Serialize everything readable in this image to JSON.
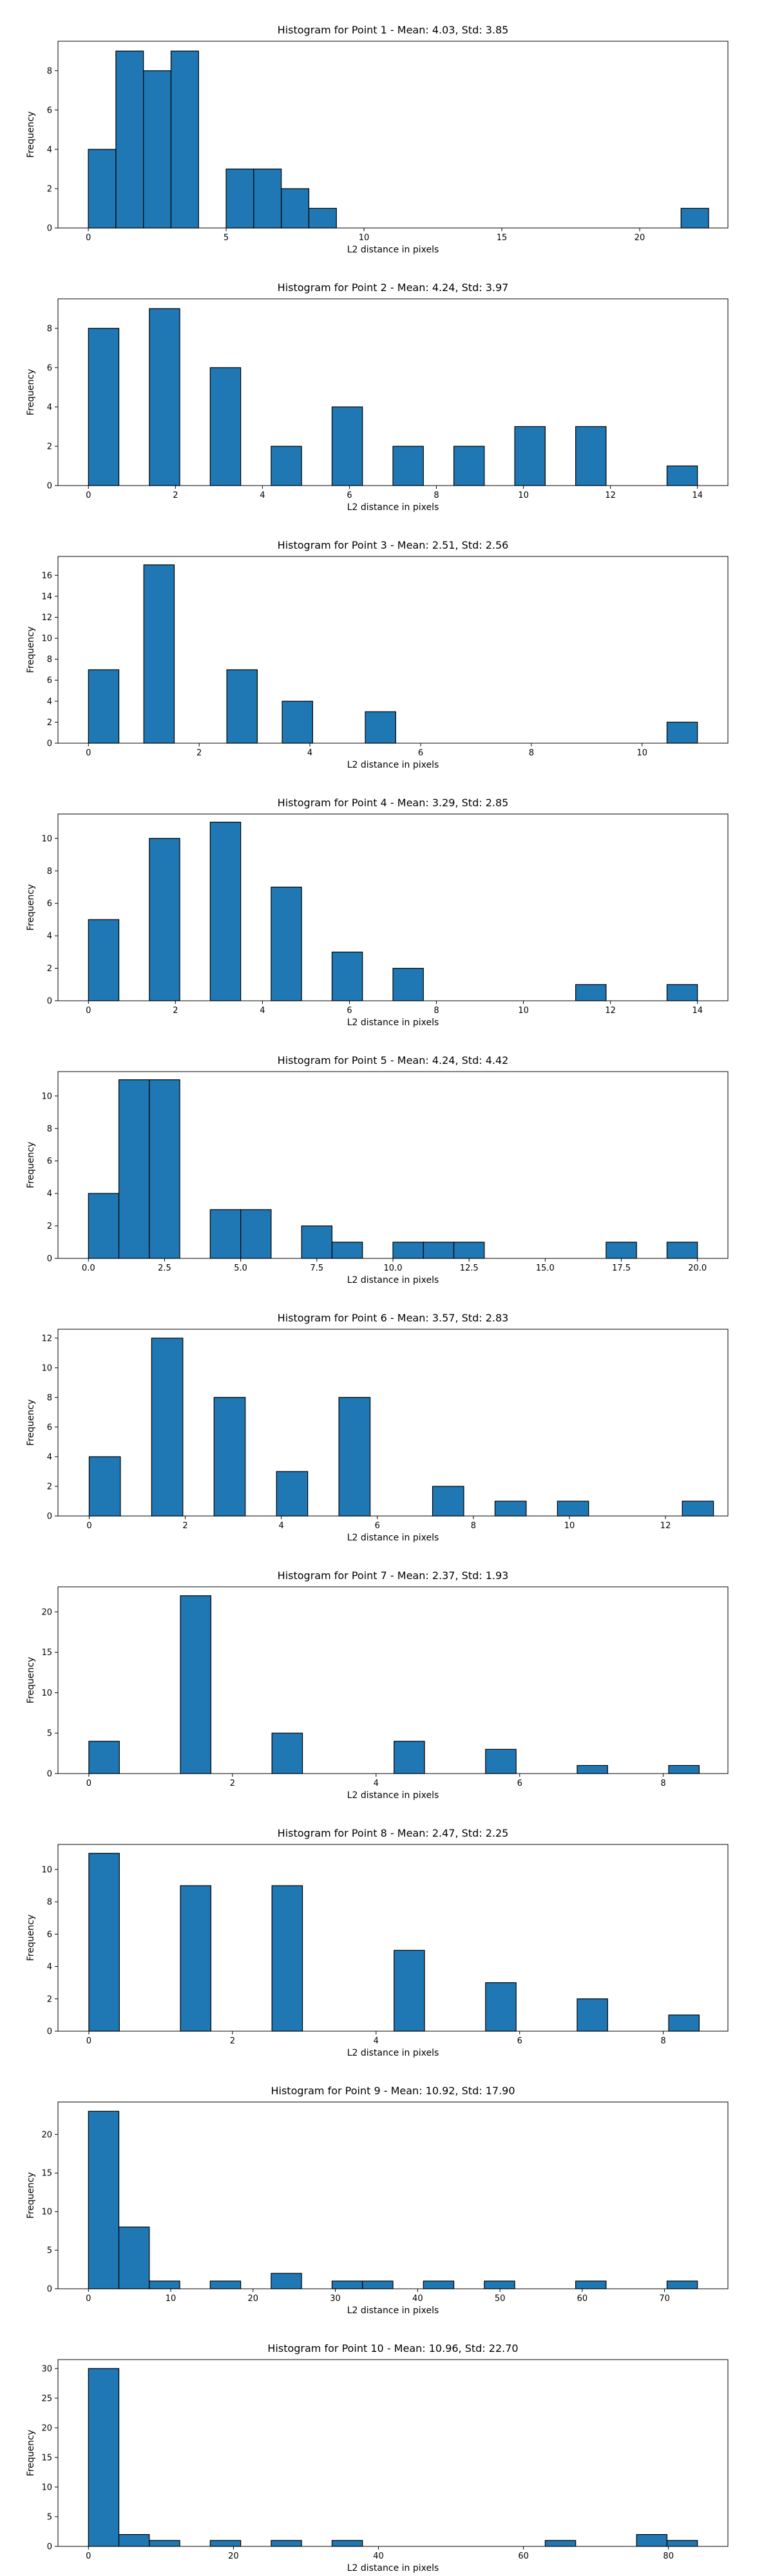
{
  "chart_data": [
    {
      "type": "bar",
      "title": "Histogram for Point 1 - Mean: 4.03, Std: 3.85",
      "xlabel": "L2 distance in pixels",
      "ylabel": "Frequency",
      "xlim": [
        -1.1,
        23.2
      ],
      "ylim": [
        0,
        9.5
      ],
      "xticks": [
        0,
        5,
        10,
        15,
        20
      ],
      "yticks": [
        0,
        2,
        4,
        6,
        8
      ],
      "bars": [
        {
          "x0": 0,
          "x1": 1.0,
          "value": 4
        },
        {
          "x0": 1.0,
          "x1": 2.0,
          "value": 9
        },
        {
          "x0": 2.0,
          "x1": 3.0,
          "value": 8
        },
        {
          "x0": 3.0,
          "x1": 4.0,
          "value": 9
        },
        {
          "x0": 5.0,
          "x1": 6.0,
          "value": 3
        },
        {
          "x0": 6.0,
          "x1": 7.0,
          "value": 3
        },
        {
          "x0": 7.0,
          "x1": 8.0,
          "value": 2
        },
        {
          "x0": 8.0,
          "x1": 9.0,
          "value": 1
        },
        {
          "x0": 21.5,
          "x1": 22.5,
          "value": 1
        }
      ]
    },
    {
      "type": "bar",
      "title": "Histogram for Point 2 - Mean: 4.24, Std: 3.97",
      "xlabel": "L2 distance in pixels",
      "ylabel": "Frequency",
      "xlim": [
        -0.7,
        14.7
      ],
      "ylim": [
        0,
        9.5
      ],
      "xticks": [
        0,
        2,
        4,
        6,
        8,
        10,
        12,
        14
      ],
      "yticks": [
        0,
        2,
        4,
        6,
        8
      ],
      "bars": [
        {
          "x0": 0,
          "x1": 0.7,
          "value": 8
        },
        {
          "x0": 1.4,
          "x1": 2.1,
          "value": 9
        },
        {
          "x0": 2.8,
          "x1": 3.5,
          "value": 6
        },
        {
          "x0": 4.2,
          "x1": 4.9,
          "value": 2
        },
        {
          "x0": 5.6,
          "x1": 6.3,
          "value": 4
        },
        {
          "x0": 7.0,
          "x1": 7.7,
          "value": 2
        },
        {
          "x0": 8.4,
          "x1": 9.1,
          "value": 2
        },
        {
          "x0": 9.8,
          "x1": 10.5,
          "value": 3
        },
        {
          "x0": 11.2,
          "x1": 11.9,
          "value": 3
        },
        {
          "x0": 13.3,
          "x1": 14.0,
          "value": 1
        }
      ]
    },
    {
      "type": "bar",
      "title": "Histogram for Point 3 - Mean: 2.51, Std: 2.56",
      "xlabel": "L2 distance in pixels",
      "ylabel": "Frequency",
      "xlim": [
        -0.55,
        11.55
      ],
      "ylim": [
        0,
        17.8
      ],
      "xticks": [
        0,
        2,
        4,
        6,
        8,
        10
      ],
      "yticks": [
        0,
        2,
        4,
        6,
        8,
        10,
        12,
        14,
        16
      ],
      "bars": [
        {
          "x0": 0,
          "x1": 0.55,
          "value": 7
        },
        {
          "x0": 1.0,
          "x1": 1.55,
          "value": 17
        },
        {
          "x0": 2.5,
          "x1": 3.05,
          "value": 7
        },
        {
          "x0": 3.5,
          "x1": 4.05,
          "value": 4
        },
        {
          "x0": 5.0,
          "x1": 5.55,
          "value": 3
        },
        {
          "x0": 10.45,
          "x1": 11.0,
          "value": 2
        }
      ]
    },
    {
      "type": "bar",
      "title": "Histogram for Point 4 - Mean: 3.29, Std: 2.85",
      "xlabel": "L2 distance in pixels",
      "ylabel": "Frequency",
      "xlim": [
        -0.7,
        14.7
      ],
      "ylim": [
        0,
        11.5
      ],
      "xticks": [
        0,
        2,
        4,
        6,
        8,
        10,
        12,
        14
      ],
      "yticks": [
        0,
        2,
        4,
        6,
        8,
        10
      ],
      "bars": [
        {
          "x0": 0,
          "x1": 0.7,
          "value": 5
        },
        {
          "x0": 1.4,
          "x1": 2.1,
          "value": 10
        },
        {
          "x0": 2.8,
          "x1": 3.5,
          "value": 11
        },
        {
          "x0": 4.2,
          "x1": 4.9,
          "value": 7
        },
        {
          "x0": 5.6,
          "x1": 6.3,
          "value": 3
        },
        {
          "x0": 7.0,
          "x1": 7.7,
          "value": 2
        },
        {
          "x0": 11.2,
          "x1": 11.9,
          "value": 1
        },
        {
          "x0": 13.3,
          "x1": 14.0,
          "value": 1
        }
      ]
    },
    {
      "type": "bar",
      "title": "Histogram for Point 5 - Mean: 4.24, Std: 4.42",
      "xlabel": "L2 distance in pixels",
      "ylabel": "Frequency",
      "xlim": [
        -1.0,
        21.0
      ],
      "ylim": [
        0,
        11.5
      ],
      "xticks": [
        0.0,
        2.5,
        5.0,
        7.5,
        10.0,
        12.5,
        15.0,
        17.5,
        20.0
      ],
      "yticks": [
        0,
        2,
        4,
        6,
        8,
        10
      ],
      "bars": [
        {
          "x0": 0,
          "x1": 1.0,
          "value": 4
        },
        {
          "x0": 1.0,
          "x1": 2.0,
          "value": 11
        },
        {
          "x0": 2.0,
          "x1": 3.0,
          "value": 11
        },
        {
          "x0": 4.0,
          "x1": 5.0,
          "value": 3
        },
        {
          "x0": 5.0,
          "x1": 6.0,
          "value": 3
        },
        {
          "x0": 7.0,
          "x1": 8.0,
          "value": 2
        },
        {
          "x0": 8.0,
          "x1": 9.0,
          "value": 1
        },
        {
          "x0": 10.0,
          "x1": 11.0,
          "value": 1
        },
        {
          "x0": 11.0,
          "x1": 12.0,
          "value": 1
        },
        {
          "x0": 12.0,
          "x1": 13.0,
          "value": 1
        },
        {
          "x0": 17.0,
          "x1": 18.0,
          "value": 1
        },
        {
          "x0": 19.0,
          "x1": 20.0,
          "value": 1
        }
      ]
    },
    {
      "type": "bar",
      "title": "Histogram for Point 6 - Mean: 3.57, Std: 2.83",
      "xlabel": "L2 distance in pixels",
      "ylabel": "Frequency",
      "xlim": [
        -0.65,
        13.3
      ],
      "ylim": [
        0,
        12.6
      ],
      "xticks": [
        0,
        2,
        4,
        6,
        8,
        10,
        12
      ],
      "yticks": [
        0,
        2,
        4,
        6,
        8,
        10,
        12
      ],
      "bars": [
        {
          "x0": 0,
          "x1": 0.65,
          "value": 4
        },
        {
          "x0": 1.3,
          "x1": 1.95,
          "value": 12
        },
        {
          "x0": 2.6,
          "x1": 3.25,
          "value": 8
        },
        {
          "x0": 3.9,
          "x1": 4.55,
          "value": 3
        },
        {
          "x0": 5.2,
          "x1": 5.85,
          "value": 8
        },
        {
          "x0": 7.15,
          "x1": 7.8,
          "value": 2
        },
        {
          "x0": 8.45,
          "x1": 9.1,
          "value": 1
        },
        {
          "x0": 9.75,
          "x1": 10.4,
          "value": 1
        },
        {
          "x0": 12.35,
          "x1": 13.0,
          "value": 1
        }
      ]
    },
    {
      "type": "bar",
      "title": "Histogram for Point 7 - Mean: 2.37, Std: 1.93",
      "xlabel": "L2 distance in pixels",
      "ylabel": "Frequency",
      "xlim": [
        -0.43,
        8.9
      ],
      "ylim": [
        0,
        23.1
      ],
      "xticks": [
        0,
        2,
        4,
        6,
        8
      ],
      "yticks": [
        0,
        5,
        10,
        15,
        20
      ],
      "bars": [
        {
          "x0": 0,
          "x1": 0.425,
          "value": 4
        },
        {
          "x0": 1.275,
          "x1": 1.7,
          "value": 22
        },
        {
          "x0": 2.55,
          "x1": 2.975,
          "value": 5
        },
        {
          "x0": 4.25,
          "x1": 4.675,
          "value": 4
        },
        {
          "x0": 5.525,
          "x1": 5.95,
          "value": 3
        },
        {
          "x0": 6.8,
          "x1": 7.225,
          "value": 1
        },
        {
          "x0": 8.075,
          "x1": 8.5,
          "value": 1
        }
      ]
    },
    {
      "type": "bar",
      "title": "Histogram for Point 8 - Mean: 2.47, Std: 2.25",
      "xlabel": "L2 distance in pixels",
      "ylabel": "Frequency",
      "xlim": [
        -0.43,
        8.9
      ],
      "ylim": [
        0,
        11.55
      ],
      "xticks": [
        0,
        2,
        4,
        6,
        8
      ],
      "yticks": [
        0,
        2,
        4,
        6,
        8,
        10
      ],
      "bars": [
        {
          "x0": 0,
          "x1": 0.425,
          "value": 11
        },
        {
          "x0": 1.275,
          "x1": 1.7,
          "value": 9
        },
        {
          "x0": 2.55,
          "x1": 2.975,
          "value": 9
        },
        {
          "x0": 4.25,
          "x1": 4.675,
          "value": 5
        },
        {
          "x0": 5.525,
          "x1": 5.95,
          "value": 3
        },
        {
          "x0": 6.8,
          "x1": 7.225,
          "value": 2
        },
        {
          "x0": 8.075,
          "x1": 8.5,
          "value": 1
        }
      ]
    },
    {
      "type": "bar",
      "title": "Histogram for Point 9 - Mean: 10.92, Std: 17.90",
      "xlabel": "L2 distance in pixels",
      "ylabel": "Frequency",
      "xlim": [
        -3.7,
        77.7
      ],
      "ylim": [
        0,
        24.2
      ],
      "xticks": [
        0,
        10,
        20,
        30,
        40,
        50,
        60,
        70
      ],
      "yticks": [
        0,
        5,
        10,
        15,
        20
      ],
      "bars": [
        {
          "x0": 0,
          "x1": 3.7,
          "value": 23
        },
        {
          "x0": 3.7,
          "x1": 7.4,
          "value": 8
        },
        {
          "x0": 7.4,
          "x1": 11.1,
          "value": 1
        },
        {
          "x0": 14.8,
          "x1": 18.5,
          "value": 1
        },
        {
          "x0": 22.2,
          "x1": 25.9,
          "value": 2
        },
        {
          "x0": 29.6,
          "x1": 33.3,
          "value": 1
        },
        {
          "x0": 33.3,
          "x1": 37.0,
          "value": 1
        },
        {
          "x0": 40.7,
          "x1": 44.4,
          "value": 1
        },
        {
          "x0": 48.1,
          "x1": 51.8,
          "value": 1
        },
        {
          "x0": 59.2,
          "x1": 62.9,
          "value": 1
        },
        {
          "x0": 70.3,
          "x1": 74.0,
          "value": 1
        }
      ]
    },
    {
      "type": "bar",
      "title": "Histogram for Point 10 - Mean: 10.96, Std: 22.70",
      "xlabel": "L2 distance in pixels",
      "ylabel": "Frequency",
      "xlim": [
        -4.2,
        88.2
      ],
      "ylim": [
        0,
        31.5
      ],
      "xticks": [
        0,
        20,
        40,
        60,
        80
      ],
      "yticks": [
        0,
        5,
        10,
        15,
        20,
        25,
        30
      ],
      "bars": [
        {
          "x0": 0,
          "x1": 4.2,
          "value": 30
        },
        {
          "x0": 4.2,
          "x1": 8.4,
          "value": 2
        },
        {
          "x0": 8.4,
          "x1": 12.6,
          "value": 1
        },
        {
          "x0": 16.8,
          "x1": 21.0,
          "value": 1
        },
        {
          "x0": 25.2,
          "x1": 29.4,
          "value": 1
        },
        {
          "x0": 33.6,
          "x1": 37.8,
          "value": 1
        },
        {
          "x0": 63.0,
          "x1": 67.2,
          "value": 1
        },
        {
          "x0": 75.6,
          "x1": 79.8,
          "value": 2
        },
        {
          "x0": 79.8,
          "x1": 84.0,
          "value": 1
        }
      ]
    }
  ]
}
